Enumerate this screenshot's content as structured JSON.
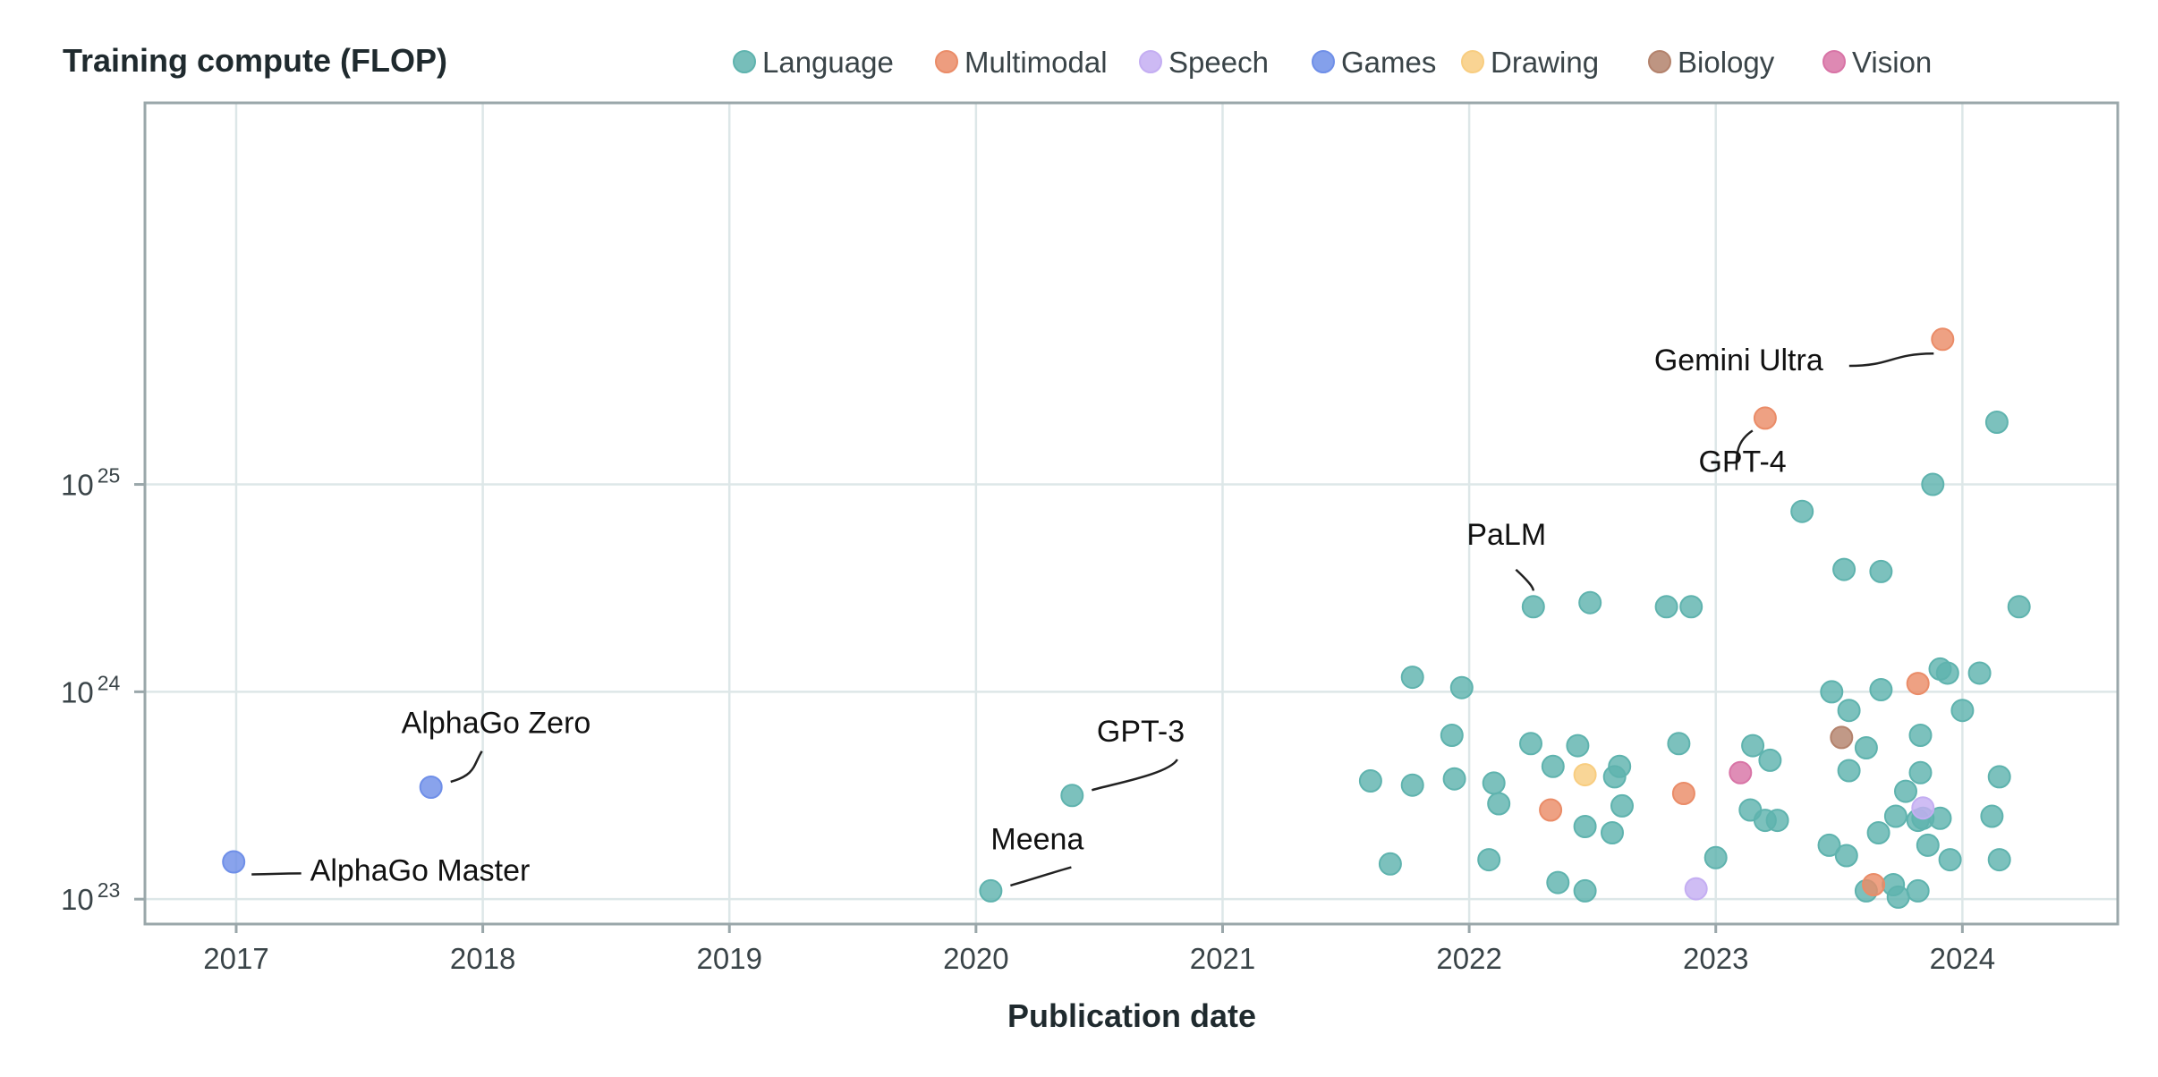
{
  "chart_data": {
    "type": "scatter",
    "title": "Training compute (FLOP)",
    "xlabel": "Publication date",
    "ylabel": "",
    "x_axis": {
      "type": "date-years",
      "range": [
        2016.63,
        2024.63
      ],
      "ticks": [
        "2017",
        "2018",
        "2019",
        "2020",
        "2021",
        "2022",
        "2023",
        "2024"
      ]
    },
    "y_axis": {
      "type": "log10",
      "range": [
        22.88,
        26.84
      ],
      "ticks": [
        {
          "exp": 23,
          "base": "10",
          "sup": "23"
        },
        {
          "exp": 24,
          "base": "10",
          "sup": "24"
        },
        {
          "exp": 25,
          "base": "10",
          "sup": "25"
        }
      ]
    },
    "grid": true,
    "legend_position": "top",
    "series": [
      {
        "name": "Language",
        "color": "#5fb3ae",
        "points": [
          [
            2020.06,
            23.04
          ],
          [
            2020.39,
            23.5
          ],
          [
            2021.6,
            23.57
          ],
          [
            2021.68,
            23.17
          ],
          [
            2021.77,
            24.07
          ],
          [
            2021.77,
            23.55
          ],
          [
            2021.93,
            23.79
          ],
          [
            2021.94,
            23.58
          ],
          [
            2021.97,
            24.02
          ],
          [
            2022.08,
            23.19
          ],
          [
            2022.1,
            23.56
          ],
          [
            2022.12,
            23.46
          ],
          [
            2022.25,
            23.75
          ],
          [
            2022.26,
            24.41
          ],
          [
            2022.34,
            23.64
          ],
          [
            2022.36,
            23.08
          ],
          [
            2022.44,
            23.74
          ],
          [
            2022.47,
            23.04
          ],
          [
            2022.47,
            23.35
          ],
          [
            2022.49,
            24.43
          ],
          [
            2022.58,
            23.32
          ],
          [
            2022.59,
            23.59
          ],
          [
            2022.61,
            23.64
          ],
          [
            2022.62,
            23.45
          ],
          [
            2022.8,
            24.41
          ],
          [
            2022.85,
            23.75
          ],
          [
            2022.9,
            24.41
          ],
          [
            2023.0,
            23.2
          ],
          [
            2023.14,
            23.43
          ],
          [
            2023.15,
            23.74
          ],
          [
            2023.2,
            23.38
          ],
          [
            2023.22,
            23.67
          ],
          [
            2023.25,
            23.38
          ],
          [
            2023.35,
            24.87
          ],
          [
            2023.46,
            23.26
          ],
          [
            2023.47,
            24.0
          ],
          [
            2023.52,
            24.59
          ],
          [
            2023.53,
            23.21
          ],
          [
            2023.54,
            23.91
          ],
          [
            2023.54,
            23.62
          ],
          [
            2023.61,
            23.73
          ],
          [
            2023.61,
            23.04
          ],
          [
            2023.66,
            23.32
          ],
          [
            2023.67,
            24.01
          ],
          [
            2023.67,
            24.58
          ],
          [
            2023.72,
            23.07
          ],
          [
            2023.73,
            23.4
          ],
          [
            2023.74,
            23.01
          ],
          [
            2023.77,
            23.52
          ],
          [
            2023.82,
            23.38
          ],
          [
            2023.82,
            23.04
          ],
          [
            2023.83,
            23.61
          ],
          [
            2023.83,
            23.79
          ],
          [
            2023.84,
            23.39
          ],
          [
            2023.86,
            23.26
          ],
          [
            2023.88,
            25.0
          ],
          [
            2023.91,
            24.11
          ],
          [
            2023.91,
            23.39
          ],
          [
            2023.94,
            24.09
          ],
          [
            2023.95,
            23.19
          ],
          [
            2024.0,
            23.91
          ],
          [
            2024.07,
            24.09
          ],
          [
            2024.12,
            23.4
          ],
          [
            2024.14,
            25.3
          ],
          [
            2024.15,
            23.59
          ],
          [
            2024.15,
            23.19
          ],
          [
            2024.23,
            24.41
          ]
        ]
      },
      {
        "name": "Multimodal",
        "color": "#ea8c68",
        "points": [
          [
            2022.33,
            23.43
          ],
          [
            2022.87,
            23.51
          ],
          [
            2023.2,
            25.32
          ],
          [
            2023.64,
            23.07
          ],
          [
            2023.82,
            24.04
          ],
          [
            2023.92,
            25.7
          ]
        ]
      },
      {
        "name": "Speech",
        "color": "#c4aef2",
        "points": [
          [
            2022.92,
            23.05
          ],
          [
            2023.84,
            23.44
          ]
        ]
      },
      {
        "name": "Games",
        "color": "#6f8fe8",
        "points": [
          [
            2016.99,
            23.18
          ],
          [
            2017.79,
            23.54
          ]
        ]
      },
      {
        "name": "Drawing",
        "color": "#f8cd80",
        "points": [
          [
            2022.47,
            23.6
          ]
        ]
      },
      {
        "name": "Biology",
        "color": "#b3826c",
        "points": [
          [
            2023.51,
            23.78
          ]
        ]
      },
      {
        "name": "Vision",
        "color": "#d874a6",
        "points": [
          [
            2023.1,
            23.61
          ]
        ]
      }
    ],
    "annotations": [
      {
        "text": "AlphaGo Master",
        "point": [
          2016.99,
          23.18
        ],
        "label_pos": [
          2017.3,
          23.09
        ]
      },
      {
        "text": "AlphaGo Zero",
        "point": [
          2017.79,
          23.54
        ],
        "label_pos": [
          2017.67,
          23.8
        ]
      },
      {
        "text": "Meena",
        "point": [
          2020.06,
          23.04
        ],
        "label_pos": [
          2020.06,
          23.24
        ]
      },
      {
        "text": "GPT-3",
        "point": [
          2020.39,
          23.5
        ],
        "label_pos": [
          2020.49,
          23.76
        ]
      },
      {
        "text": "PaLM",
        "point": [
          2022.26,
          24.41
        ],
        "label_pos": [
          2021.99,
          24.71
        ]
      },
      {
        "text": "GPT-4",
        "point": [
          2023.2,
          25.32
        ],
        "label_pos": [
          2022.93,
          25.06
        ]
      },
      {
        "text": "Gemini Ultra",
        "point": [
          2023.92,
          25.7
        ],
        "label_pos": [
          2022.75,
          25.55
        ]
      }
    ]
  }
}
